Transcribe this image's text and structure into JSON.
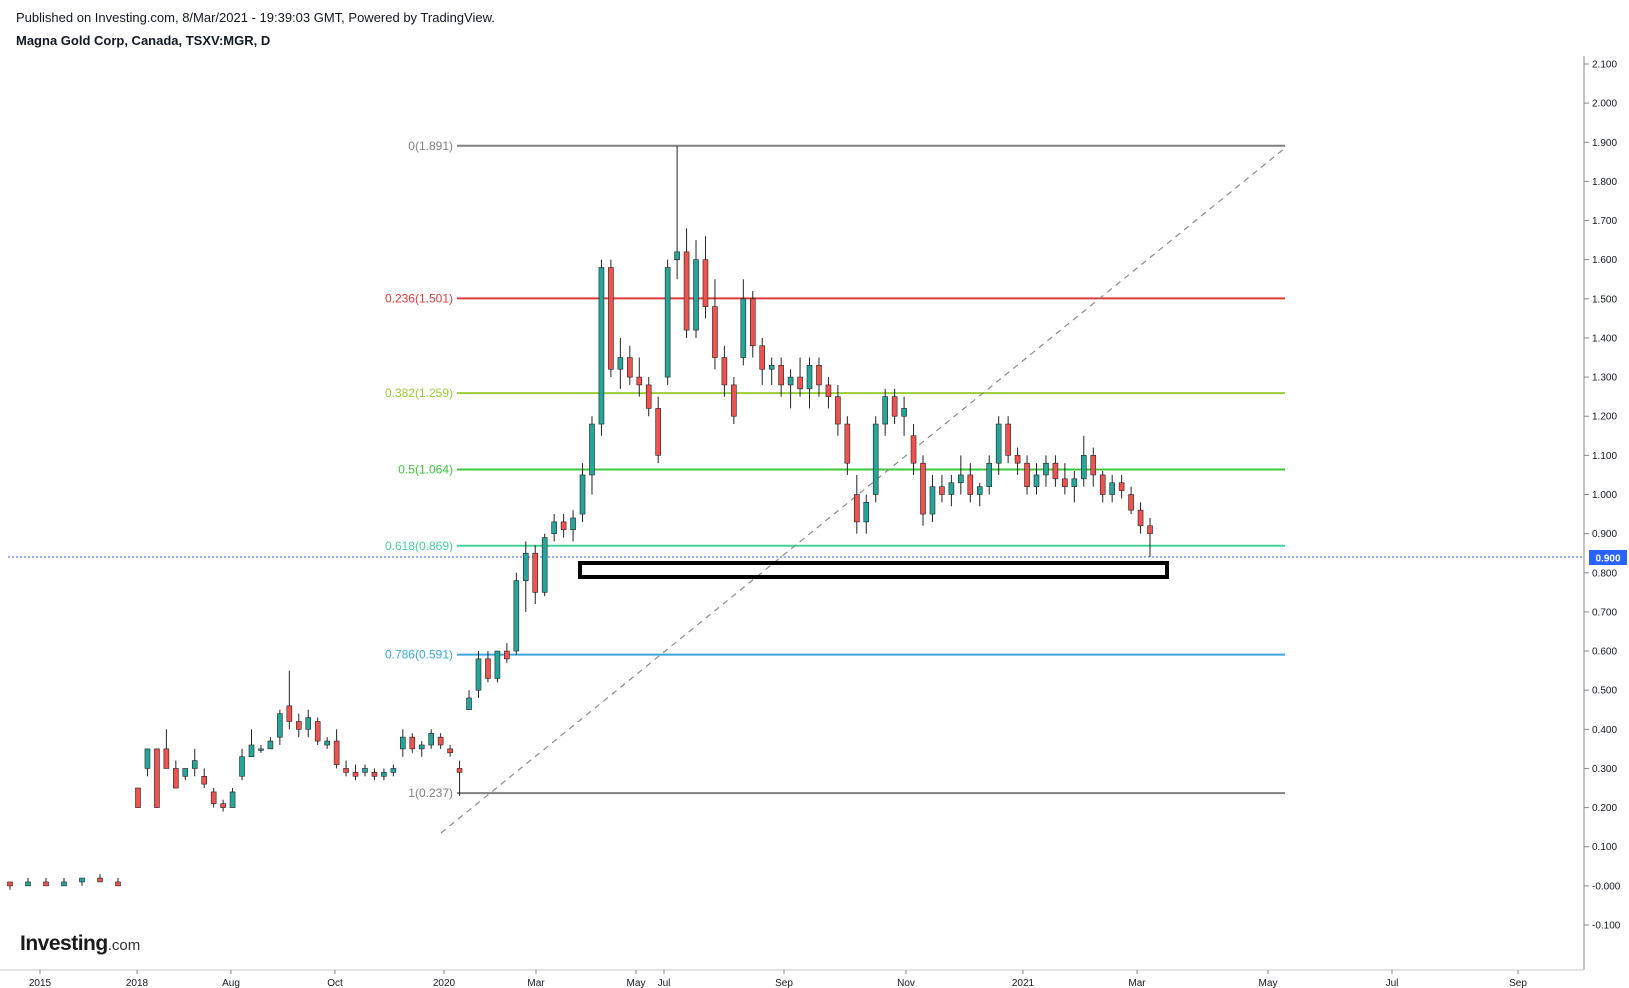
{
  "header": {
    "published": "Published on Investing.com, 8/Mar/2021 - 19:39:03 GMT, Powered by TradingView.",
    "title": "Magna Gold Corp, Canada, TSXV:MGR, D"
  },
  "logo": {
    "brand": "Investing",
    "suffix": ".com"
  },
  "colors": {
    "up": "#26a69a",
    "down": "#ef5350",
    "fib_0": "#808080",
    "fib_236": "#e03a3a",
    "fib_382": "#9acd32",
    "fib_5": "#3cc83c",
    "fib_618": "#41d49a",
    "fib_786": "#3aa8e0",
    "fib_1": "#808080",
    "price_line": "#2962ff"
  },
  "chart_data": {
    "type": "candlestick",
    "title": "Magna Gold Corp, Canada, TSXV:MGR, D",
    "y_ticks": [
      "2.100",
      "2.000",
      "1.900",
      "1.800",
      "1.700",
      "1.600",
      "1.500",
      "1.400",
      "1.300",
      "1.200",
      "1.100",
      "1.000",
      "0.900",
      "0.800",
      "0.700",
      "0.600",
      "0.500",
      "0.400",
      "0.300",
      "0.200",
      "0.100",
      "-0.000",
      "-0.100"
    ],
    "ylim": [
      -0.1,
      2.1
    ],
    "x_ticks": [
      "2015",
      "2018",
      "Aug",
      "Oct",
      "2020",
      "Mar",
      "May",
      "Jul",
      "Sep",
      "Nov",
      "2021",
      "Mar",
      "May",
      "Jul",
      "Sep"
    ],
    "current_price": "0.900",
    "fibonacci": [
      {
        "label": "0(1.891)",
        "value": 1.891,
        "color": "#808080"
      },
      {
        "label": "0.236(1.501)",
        "value": 1.501,
        "color": "#e03a3a"
      },
      {
        "label": "0.382(1.259)",
        "value": 1.259,
        "color": "#9acd32"
      },
      {
        "label": "0.5(1.064)",
        "value": 1.064,
        "color": "#3cc83c"
      },
      {
        "label": "0.618(0.869)",
        "value": 0.869,
        "color": "#41d49a"
      },
      {
        "label": "0.786(0.591)",
        "value": 0.591,
        "color": "#3aa8e0"
      },
      {
        "label": "1(0.237)",
        "value": 0.237,
        "color": "#808080"
      }
    ],
    "candles": [
      [
        0.01,
        0.01,
        -0.01,
        0.0
      ],
      [
        0.0,
        0.02,
        0.0,
        0.01
      ],
      [
        0.01,
        0.02,
        0.0,
        0.0
      ],
      [
        0.0,
        0.02,
        0.0,
        0.01
      ],
      [
        0.01,
        0.02,
        0.0,
        0.02
      ],
      [
        0.02,
        0.03,
        0.01,
        0.01
      ],
      [
        0.01,
        0.02,
        0.0,
        0.0
      ],
      [
        0.25,
        0.25,
        0.2,
        0.2
      ],
      [
        0.3,
        0.35,
        0.28,
        0.35
      ],
      [
        0.35,
        0.35,
        0.2,
        0.2
      ],
      [
        0.35,
        0.4,
        0.3,
        0.3
      ],
      [
        0.3,
        0.32,
        0.25,
        0.25
      ],
      [
        0.28,
        0.3,
        0.27,
        0.3
      ],
      [
        0.3,
        0.35,
        0.28,
        0.32
      ],
      [
        0.28,
        0.3,
        0.25,
        0.26
      ],
      [
        0.24,
        0.25,
        0.2,
        0.21
      ],
      [
        0.21,
        0.22,
        0.19,
        0.2
      ],
      [
        0.2,
        0.25,
        0.2,
        0.24
      ],
      [
        0.28,
        0.35,
        0.27,
        0.33
      ],
      [
        0.33,
        0.4,
        0.33,
        0.36
      ],
      [
        0.35,
        0.36,
        0.34,
        0.35
      ],
      [
        0.35,
        0.38,
        0.35,
        0.37
      ],
      [
        0.38,
        0.45,
        0.36,
        0.44
      ],
      [
        0.46,
        0.55,
        0.4,
        0.42
      ],
      [
        0.42,
        0.44,
        0.38,
        0.4
      ],
      [
        0.4,
        0.45,
        0.38,
        0.43
      ],
      [
        0.42,
        0.43,
        0.36,
        0.37
      ],
      [
        0.36,
        0.38,
        0.35,
        0.37
      ],
      [
        0.37,
        0.4,
        0.3,
        0.31
      ],
      [
        0.3,
        0.32,
        0.28,
        0.29
      ],
      [
        0.29,
        0.31,
        0.27,
        0.28
      ],
      [
        0.29,
        0.31,
        0.28,
        0.3
      ],
      [
        0.29,
        0.3,
        0.27,
        0.28
      ],
      [
        0.28,
        0.3,
        0.27,
        0.29
      ],
      [
        0.29,
        0.31,
        0.28,
        0.3
      ],
      [
        0.35,
        0.4,
        0.33,
        0.38
      ],
      [
        0.38,
        0.39,
        0.34,
        0.35
      ],
      [
        0.35,
        0.37,
        0.33,
        0.36
      ],
      [
        0.36,
        0.4,
        0.35,
        0.39
      ],
      [
        0.38,
        0.39,
        0.35,
        0.36
      ],
      [
        0.35,
        0.36,
        0.33,
        0.34
      ],
      [
        0.3,
        0.32,
        0.23,
        0.29
      ],
      [
        0.45,
        0.5,
        0.45,
        0.48
      ],
      [
        0.5,
        0.6,
        0.48,
        0.58
      ],
      [
        0.58,
        0.6,
        0.52,
        0.53
      ],
      [
        0.53,
        0.6,
        0.52,
        0.6
      ],
      [
        0.6,
        0.62,
        0.57,
        0.58
      ],
      [
        0.6,
        0.8,
        0.59,
        0.78
      ],
      [
        0.78,
        0.88,
        0.7,
        0.85
      ],
      [
        0.85,
        0.87,
        0.72,
        0.75
      ],
      [
        0.75,
        0.9,
        0.74,
        0.89
      ],
      [
        0.9,
        0.95,
        0.88,
        0.93
      ],
      [
        0.93,
        0.95,
        0.89,
        0.91
      ],
      [
        0.91,
        0.96,
        0.88,
        0.94
      ],
      [
        0.95,
        1.08,
        0.93,
        1.05
      ],
      [
        1.05,
        1.2,
        1.0,
        1.18
      ],
      [
        1.18,
        1.6,
        1.15,
        1.58
      ],
      [
        1.58,
        1.6,
        1.3,
        1.32
      ],
      [
        1.32,
        1.4,
        1.27,
        1.35
      ],
      [
        1.35,
        1.38,
        1.28,
        1.3
      ],
      [
        1.3,
        1.35,
        1.25,
        1.28
      ],
      [
        1.28,
        1.3,
        1.2,
        1.22
      ],
      [
        1.22,
        1.25,
        1.08,
        1.1
      ],
      [
        1.3,
        1.6,
        1.28,
        1.58
      ],
      [
        1.6,
        1.89,
        1.55,
        1.62
      ],
      [
        1.62,
        1.68,
        1.4,
        1.42
      ],
      [
        1.42,
        1.65,
        1.4,
        1.6
      ],
      [
        1.6,
        1.66,
        1.45,
        1.48
      ],
      [
        1.48,
        1.55,
        1.32,
        1.35
      ],
      [
        1.35,
        1.38,
        1.25,
        1.28
      ],
      [
        1.28,
        1.3,
        1.18,
        1.2
      ],
      [
        1.35,
        1.55,
        1.33,
        1.5
      ],
      [
        1.5,
        1.52,
        1.35,
        1.38
      ],
      [
        1.38,
        1.4,
        1.28,
        1.32
      ],
      [
        1.32,
        1.35,
        1.28,
        1.33
      ],
      [
        1.33,
        1.35,
        1.25,
        1.28
      ],
      [
        1.28,
        1.32,
        1.22,
        1.3
      ],
      [
        1.3,
        1.35,
        1.25,
        1.27
      ],
      [
        1.27,
        1.35,
        1.22,
        1.33
      ],
      [
        1.33,
        1.35,
        1.25,
        1.28
      ],
      [
        1.28,
        1.3,
        1.22,
        1.25
      ],
      [
        1.25,
        1.28,
        1.15,
        1.18
      ],
      [
        1.18,
        1.2,
        1.05,
        1.08
      ],
      [
        1.0,
        1.05,
        0.9,
        0.93
      ],
      [
        0.93,
        1.0,
        0.9,
        0.98
      ],
      [
        1.0,
        1.2,
        0.98,
        1.18
      ],
      [
        1.18,
        1.27,
        1.15,
        1.25
      ],
      [
        1.25,
        1.27,
        1.18,
        1.2
      ],
      [
        1.2,
        1.25,
        1.15,
        1.22
      ],
      [
        1.15,
        1.18,
        1.05,
        1.08
      ],
      [
        1.08,
        1.1,
        0.92,
        0.95
      ],
      [
        0.95,
        1.05,
        0.93,
        1.02
      ],
      [
        1.02,
        1.05,
        0.98,
        1.0
      ],
      [
        1.0,
        1.05,
        0.97,
        1.03
      ],
      [
        1.03,
        1.1,
        1.0,
        1.05
      ],
      [
        1.05,
        1.08,
        0.98,
        1.0
      ],
      [
        1.0,
        1.03,
        0.97,
        1.02
      ],
      [
        1.02,
        1.1,
        1.0,
        1.08
      ],
      [
        1.08,
        1.2,
        1.05,
        1.18
      ],
      [
        1.18,
        1.2,
        1.08,
        1.1
      ],
      [
        1.1,
        1.12,
        1.05,
        1.08
      ],
      [
        1.08,
        1.1,
        1.0,
        1.02
      ],
      [
        1.02,
        1.08,
        1.0,
        1.05
      ],
      [
        1.05,
        1.1,
        1.02,
        1.08
      ],
      [
        1.08,
        1.1,
        1.02,
        1.04
      ],
      [
        1.04,
        1.08,
        1.0,
        1.02
      ],
      [
        1.02,
        1.06,
        0.98,
        1.04
      ],
      [
        1.04,
        1.15,
        1.02,
        1.1
      ],
      [
        1.1,
        1.12,
        1.02,
        1.05
      ],
      [
        1.05,
        1.06,
        0.98,
        1.0
      ],
      [
        1.0,
        1.05,
        0.98,
        1.03
      ],
      [
        1.03,
        1.05,
        0.99,
        1.01
      ],
      [
        1.0,
        1.02,
        0.95,
        0.96
      ],
      [
        0.96,
        0.98,
        0.9,
        0.92
      ],
      [
        0.92,
        0.94,
        0.84,
        0.9
      ]
    ]
  }
}
